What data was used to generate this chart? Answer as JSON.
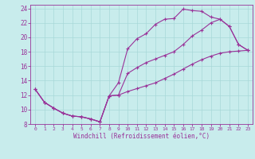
{
  "xlabel": "Windchill (Refroidissement éolien,°C)",
  "bg_color": "#c8ecec",
  "grid_color": "#a8d8d8",
  "line_color": "#993399",
  "xlim": [
    -0.5,
    23.5
  ],
  "ylim": [
    8,
    24.5
  ],
  "xticks": [
    0,
    1,
    2,
    3,
    4,
    5,
    6,
    7,
    8,
    9,
    10,
    11,
    12,
    13,
    14,
    15,
    16,
    17,
    18,
    19,
    20,
    21,
    22,
    23
  ],
  "yticks": [
    8,
    10,
    12,
    14,
    16,
    18,
    20,
    22,
    24
  ],
  "x_upper": [
    0,
    1,
    2,
    3,
    4,
    5,
    6,
    7,
    8,
    9,
    10,
    11,
    12,
    13,
    14,
    15,
    16,
    17,
    18,
    19,
    20,
    21,
    22,
    23
  ],
  "y_upper": [
    12.8,
    11.0,
    10.2,
    9.5,
    9.1,
    9.0,
    8.7,
    8.3,
    11.9,
    13.7,
    18.4,
    19.8,
    20.5,
    21.8,
    22.5,
    22.6,
    23.9,
    23.7,
    23.6,
    22.8,
    22.5,
    21.5,
    19.0,
    18.2
  ],
  "x_mid": [
    0,
    1,
    2,
    3,
    4,
    5,
    6,
    7,
    8,
    9,
    10,
    11,
    12,
    13,
    14,
    15,
    16,
    17,
    18,
    19,
    20,
    21,
    22,
    23
  ],
  "y_mid": [
    12.8,
    11.0,
    10.2,
    9.5,
    9.1,
    9.0,
    8.7,
    8.3,
    11.9,
    12.0,
    15.0,
    15.8,
    16.5,
    17.0,
    17.5,
    18.0,
    19.0,
    20.2,
    21.0,
    22.0,
    22.5,
    21.5,
    19.0,
    18.2
  ],
  "x_lower": [
    0,
    1,
    2,
    3,
    4,
    5,
    6,
    7,
    8,
    9,
    10,
    11,
    12,
    13,
    14,
    15,
    16,
    17,
    18,
    19,
    20,
    21,
    22,
    23
  ],
  "y_lower": [
    12.8,
    11.0,
    10.2,
    9.5,
    9.1,
    9.0,
    8.7,
    8.3,
    11.9,
    12.0,
    12.5,
    12.9,
    13.3,
    13.7,
    14.3,
    14.9,
    15.6,
    16.3,
    16.9,
    17.4,
    17.8,
    18.0,
    18.1,
    18.2
  ]
}
